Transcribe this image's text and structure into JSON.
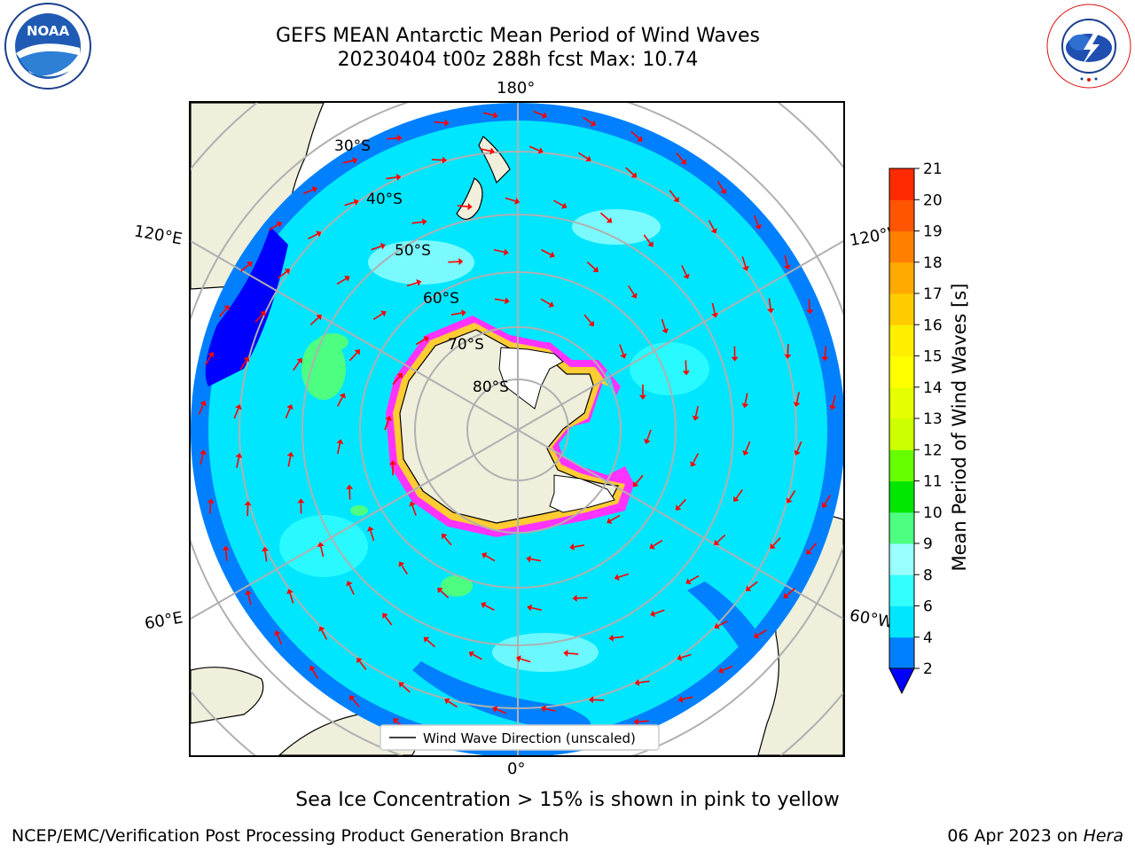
{
  "header": {
    "title_line1": "GEFS MEAN Antarctic Mean Period of Wind Waves",
    "title_line2": "20230404 t00z 288h fcst   Max: 10.74"
  },
  "logos": {
    "left": "NOAA",
    "left_ring_text": "NATIONAL OCEANIC AND ATMOSPHERIC ADMINISTRATION · U.S. DEPARTMENT OF COMMERCE",
    "right_ring_text": "NATIONAL WEATHER SERVICE"
  },
  "map": {
    "projection": "south-polar-stereographic",
    "longitude_labels": {
      "top": "180°",
      "bottom": "0°",
      "upper_left": "120°E",
      "upper_right": "120°W",
      "lower_left": "60°E",
      "lower_right": "60°W"
    },
    "latitude_labels": [
      "30°S",
      "40°S",
      "50°S",
      "60°S",
      "70°S",
      "80°S"
    ],
    "legend_label": "Wind Wave Direction (unscaled)",
    "arrow_color": "#ff0000",
    "land_color": "#efefdc",
    "ice_colors": [
      "#ff33ff",
      "#ff99ff",
      "#ffcc33",
      "#ffff66"
    ]
  },
  "colorbar": {
    "title": "Mean Period of Wind Waves [s]",
    "ticks": [
      "2",
      "4",
      "6",
      "8",
      "9",
      "10",
      "11",
      "12",
      "13",
      "14",
      "15",
      "16",
      "17",
      "18",
      "19",
      "20",
      "21"
    ],
    "colors": [
      "#0080ff",
      "#00e6ff",
      "#33ffff",
      "#99ffff",
      "#4dff80",
      "#00e600",
      "#66ff00",
      "#ccff00",
      "#e6ff00",
      "#ffff00",
      "#ffee00",
      "#ffcc00",
      "#ffaa00",
      "#ff8000",
      "#ff5500",
      "#ff2a00"
    ],
    "under_color": "#0000ff"
  },
  "footer": {
    "note": "Sea Ice Concentration > 15% is shown in pink to yellow",
    "credit_left": "NCEP/EMC/Verification Post Processing Product Generation Branch",
    "credit_right_prefix": "06 Apr 2023 on ",
    "credit_right_machine": "Hera"
  }
}
